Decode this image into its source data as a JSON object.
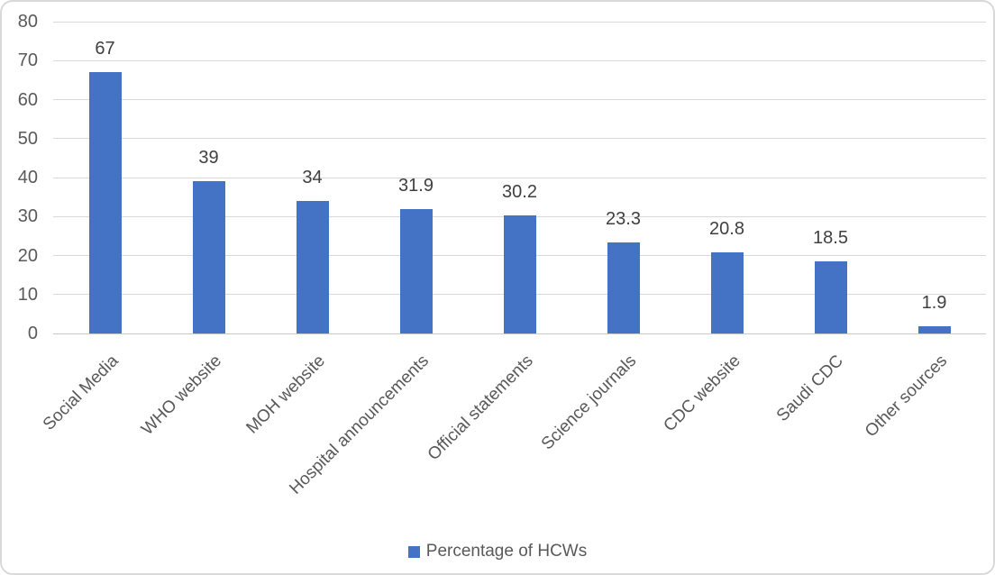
{
  "chart_data": {
    "type": "bar",
    "categories": [
      "Social Media",
      "WHO website",
      "MOH website",
      "Hospital announcements",
      "Official statements",
      "Science journals",
      "CDC website",
      "Saudi CDC",
      "Other sources"
    ],
    "values": [
      67,
      39,
      34,
      31.9,
      30.2,
      23.3,
      20.8,
      18.5,
      1.9
    ],
    "data_labels": [
      "67",
      "39",
      "34",
      "31.9",
      "30.2",
      "23.3",
      "20.8",
      "18.5",
      "1.9"
    ],
    "series": [
      {
        "name": "Percentage of HCWs",
        "values": [
          67,
          39,
          34,
          31.9,
          30.2,
          23.3,
          20.8,
          18.5,
          1.9
        ]
      }
    ],
    "title": "",
    "xlabel": "",
    "ylabel": "",
    "ylim": [
      0,
      80
    ],
    "yticks": [
      0,
      10,
      20,
      30,
      40,
      50,
      60,
      70,
      80
    ],
    "grid": true,
    "legend_position": "bottom",
    "bar_color": "#4472C4",
    "gridline_color": "#D9D9D9",
    "axis_text_color": "#595959",
    "data_label_color": "#404040"
  },
  "legend": {
    "label": "Percentage of HCWs",
    "swatch_color": "#4472C4"
  }
}
